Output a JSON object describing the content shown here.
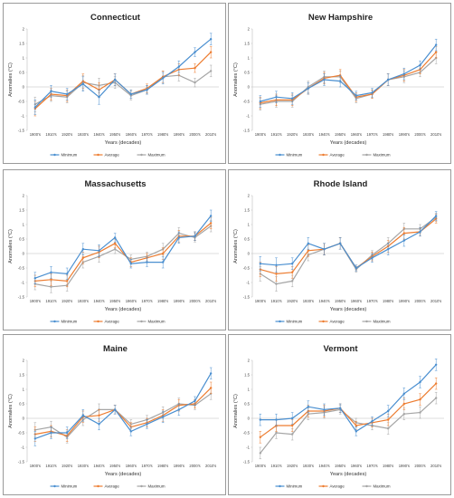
{
  "chart_data": [
    {
      "type": "line",
      "title": "Connecticut",
      "xlabel": "Years (decades)",
      "ylabel": "Anomalies (°C)",
      "ylim": [
        -1.5,
        2
      ],
      "yticks": [
        "-1.5",
        "-1",
        "-0.5",
        "0",
        "0.5",
        "1",
        "1.5",
        "2"
      ],
      "categories": [
        "1900's",
        "1910's",
        "1920's",
        "1930's",
        "1940's",
        "1950's",
        "1960's",
        "1970's",
        "1980's",
        "1990's",
        "2000's",
        "2010's"
      ],
      "legend_position": "bottom",
      "grid": false,
      "series": [
        {
          "name": "Minimum",
          "color": "#4a8fd0",
          "values": [
            -0.7,
            -0.15,
            -0.25,
            0.1,
            -0.35,
            0.25,
            -0.25,
            -0.1,
            0.3,
            0.7,
            1.2,
            1.65
          ],
          "errors": [
            0.25,
            0.2,
            0.2,
            0.25,
            0.25,
            0.2,
            0.15,
            0.15,
            0.2,
            0.2,
            0.15,
            0.2
          ]
        },
        {
          "name": "Average",
          "color": "#ed7d31",
          "values": [
            -0.75,
            -0.25,
            -0.3,
            0.2,
            -0.1,
            0.25,
            -0.25,
            -0.05,
            0.35,
            0.6,
            0.65,
            1.2
          ],
          "errors": [
            0.25,
            0.2,
            0.2,
            0.25,
            0.25,
            0.2,
            0.15,
            0.15,
            0.2,
            0.2,
            0.15,
            0.2
          ]
        },
        {
          "name": "Maximum",
          "color": "#a5a5a5",
          "values": [
            -0.6,
            -0.3,
            -0.35,
            0.15,
            0.05,
            0.15,
            -0.3,
            -0.1,
            0.35,
            0.4,
            0.15,
            0.55
          ],
          "errors": [
            0.25,
            0.2,
            0.2,
            0.25,
            0.25,
            0.2,
            0.15,
            0.15,
            0.2,
            0.2,
            0.15,
            0.2
          ]
        }
      ]
    },
    {
      "type": "line",
      "title": "New Hampshire",
      "xlabel": "Years (decades)",
      "ylabel": "Anomalies (°C)",
      "ylim": [
        -1.5,
        2
      ],
      "yticks": [
        "-1.5",
        "-1",
        "-0.5",
        "0",
        "0.5",
        "1",
        "1.5",
        "2"
      ],
      "categories": [
        "1900's",
        "1910's",
        "1920's",
        "1930's",
        "1940's",
        "1950's",
        "1960's",
        "1970's",
        "1980's",
        "1990's",
        "2000's",
        "2010's"
      ],
      "legend_position": "bottom",
      "grid": false,
      "series": [
        {
          "name": "Minimum",
          "color": "#4a8fd0",
          "values": [
            -0.5,
            -0.35,
            -0.4,
            -0.05,
            0.25,
            0.2,
            -0.3,
            -0.2,
            0.25,
            0.45,
            0.75,
            1.45
          ],
          "errors": [
            0.2,
            0.2,
            0.2,
            0.2,
            0.2,
            0.2,
            0.15,
            0.15,
            0.2,
            0.2,
            0.15,
            0.2
          ]
        },
        {
          "name": "Average",
          "color": "#ed7d31",
          "values": [
            -0.55,
            -0.45,
            -0.45,
            -0.05,
            0.3,
            0.4,
            -0.35,
            -0.25,
            0.25,
            0.4,
            0.6,
            1.2
          ],
          "errors": [
            0.2,
            0.2,
            0.2,
            0.2,
            0.2,
            0.2,
            0.15,
            0.15,
            0.2,
            0.2,
            0.15,
            0.2
          ]
        },
        {
          "name": "Maximum",
          "color": "#a5a5a5",
          "values": [
            -0.6,
            -0.5,
            -0.5,
            0.0,
            0.35,
            0.35,
            -0.4,
            -0.25,
            0.25,
            0.35,
            0.5,
            1.0
          ],
          "errors": [
            0.2,
            0.2,
            0.2,
            0.2,
            0.2,
            0.2,
            0.15,
            0.15,
            0.2,
            0.2,
            0.15,
            0.2
          ]
        }
      ]
    },
    {
      "type": "line",
      "title": "Massachusetts",
      "xlabel": "Years (decades)",
      "ylabel": "Anomalies (°C)",
      "ylim": [
        -1.5,
        2
      ],
      "yticks": [
        "-1.5",
        "-1",
        "-0.5",
        "0",
        "0.5",
        "1",
        "1.5",
        "2"
      ],
      "categories": [
        "1900's",
        "1910's",
        "1920's",
        "1930's",
        "1940's",
        "1950's",
        "1960's",
        "1970's",
        "1980's",
        "1990's",
        "2000's",
        "2010's"
      ],
      "legend_position": "bottom",
      "grid": false,
      "series": [
        {
          "name": "Minimum",
          "color": "#4a8fd0",
          "values": [
            -0.85,
            -0.65,
            -0.7,
            0.15,
            0.1,
            0.55,
            -0.35,
            -0.3,
            -0.3,
            0.55,
            0.6,
            1.3
          ],
          "errors": [
            0.2,
            0.2,
            0.2,
            0.2,
            0.2,
            0.15,
            0.15,
            0.15,
            0.2,
            0.2,
            0.15,
            0.2
          ]
        },
        {
          "name": "Average",
          "color": "#ed7d31",
          "values": [
            -0.95,
            -0.9,
            -0.95,
            -0.15,
            0.05,
            0.35,
            -0.3,
            -0.15,
            0.0,
            0.6,
            0.6,
            1.05
          ],
          "errors": [
            0.2,
            0.2,
            0.2,
            0.2,
            0.2,
            0.15,
            0.15,
            0.15,
            0.2,
            0.2,
            0.15,
            0.2
          ]
        },
        {
          "name": "Maximum",
          "color": "#a5a5a5",
          "values": [
            -1.05,
            -1.15,
            -1.1,
            -0.3,
            -0.1,
            0.15,
            -0.2,
            -0.1,
            0.15,
            0.7,
            0.55,
            0.95
          ],
          "errors": [
            0.2,
            0.2,
            0.2,
            0.2,
            0.2,
            0.15,
            0.15,
            0.15,
            0.2,
            0.2,
            0.15,
            0.2
          ]
        }
      ]
    },
    {
      "type": "line",
      "title": "Rhode Island",
      "xlabel": "Years (decades)",
      "ylabel": "Anomalies (°C)",
      "ylim": [
        -1.5,
        2
      ],
      "yticks": [
        "-1.5",
        "-1",
        "-0.5",
        "0",
        "0.5",
        "1",
        "1.5",
        "2"
      ],
      "categories": [
        "1900's",
        "1910's",
        "1920's",
        "1930's",
        "1940's",
        "1950's",
        "1960's",
        "1970's",
        "1980's",
        "1990's",
        "2000's",
        "2010's"
      ],
      "legend_position": "bottom",
      "grid": false,
      "series": [
        {
          "name": "Minimum",
          "color": "#4a8fd0",
          "values": [
            -0.35,
            -0.4,
            -0.35,
            0.35,
            0.15,
            0.35,
            -0.5,
            -0.15,
            0.15,
            0.45,
            0.75,
            1.3
          ],
          "errors": [
            0.25,
            0.25,
            0.2,
            0.2,
            0.2,
            0.2,
            0.1,
            0.15,
            0.2,
            0.2,
            0.15,
            0.15
          ]
        },
        {
          "name": "Average",
          "color": "#ed7d31",
          "values": [
            -0.55,
            -0.7,
            -0.65,
            0.1,
            0.15,
            0.35,
            -0.5,
            -0.1,
            0.25,
            0.7,
            0.75,
            1.2
          ],
          "errors": [
            0.25,
            0.25,
            0.2,
            0.2,
            0.2,
            0.2,
            0.1,
            0.15,
            0.2,
            0.2,
            0.15,
            0.15
          ]
        },
        {
          "name": "Maximum",
          "color": "#a5a5a5",
          "values": [
            -0.7,
            -1.05,
            -0.95,
            -0.05,
            0.15,
            0.35,
            -0.55,
            -0.05,
            0.35,
            0.85,
            0.85,
            1.25
          ],
          "errors": [
            0.25,
            0.25,
            0.2,
            0.2,
            0.2,
            0.2,
            0.1,
            0.15,
            0.2,
            0.2,
            0.15,
            0.15
          ]
        }
      ]
    },
    {
      "type": "line",
      "title": "Maine",
      "xlabel": "Years (decades)",
      "ylabel": "Anomalies (°C)",
      "ylim": [
        -1.5,
        2
      ],
      "yticks": [
        "-1.5",
        "-1",
        "-0.5",
        "0",
        "0.5",
        "1",
        "1.5",
        "2"
      ],
      "categories": [
        "1900's",
        "1910's",
        "1920's",
        "1930's",
        "1940's",
        "1950's",
        "1960's",
        "1970's",
        "1980's",
        "1990's",
        "2000's",
        "2010's"
      ],
      "legend_position": "bottom",
      "grid": false,
      "series": [
        {
          "name": "Minimum",
          "color": "#4a8fd0",
          "values": [
            -0.7,
            -0.5,
            -0.5,
            0.1,
            -0.2,
            0.3,
            -0.45,
            -0.2,
            0.05,
            0.3,
            0.6,
            1.55
          ],
          "errors": [
            0.25,
            0.2,
            0.2,
            0.2,
            0.2,
            0.15,
            0.15,
            0.15,
            0.2,
            0.2,
            0.15,
            0.2
          ]
        },
        {
          "name": "Average",
          "color": "#ed7d31",
          "values": [
            -0.55,
            -0.45,
            -0.6,
            0.05,
            0.1,
            0.3,
            -0.3,
            -0.15,
            0.1,
            0.45,
            0.5,
            1.05
          ],
          "errors": [
            0.25,
            0.2,
            0.2,
            0.2,
            0.2,
            0.15,
            0.15,
            0.15,
            0.2,
            0.2,
            0.15,
            0.2
          ]
        },
        {
          "name": "Maximum",
          "color": "#a5a5a5",
          "values": [
            -0.4,
            -0.3,
            -0.65,
            -0.05,
            0.3,
            0.3,
            -0.2,
            -0.05,
            0.2,
            0.5,
            0.45,
            0.85
          ],
          "errors": [
            0.25,
            0.2,
            0.2,
            0.2,
            0.2,
            0.15,
            0.15,
            0.15,
            0.2,
            0.2,
            0.15,
            0.2
          ]
        }
      ]
    },
    {
      "type": "line",
      "title": "Vermont",
      "xlabel": "Years (decades)",
      "ylabel": "Anomalies (°C)",
      "ylim": [
        -1.5,
        2
      ],
      "yticks": [
        "-1.5",
        "-1",
        "-0.5",
        "0",
        "0.5",
        "1",
        "1.5",
        "2"
      ],
      "categories": [
        "1900's",
        "1910's",
        "1920's",
        "1930's",
        "1940's",
        "1950's",
        "1960's",
        "1970's",
        "1980's",
        "1990's",
        "2000's",
        "2010's"
      ],
      "legend_position": "bottom",
      "grid": false,
      "series": [
        {
          "name": "Minimum",
          "color": "#4a8fd0",
          "values": [
            -0.05,
            -0.05,
            0.0,
            0.4,
            0.3,
            0.35,
            -0.45,
            -0.1,
            0.25,
            0.85,
            1.25,
            1.85
          ],
          "errors": [
            0.2,
            0.2,
            0.2,
            0.2,
            0.2,
            0.15,
            0.15,
            0.15,
            0.2,
            0.2,
            0.2,
            0.2
          ]
        },
        {
          "name": "Average",
          "color": "#ed7d31",
          "values": [
            -0.65,
            -0.25,
            -0.25,
            0.25,
            0.25,
            0.35,
            -0.25,
            -0.15,
            -0.05,
            0.5,
            0.65,
            1.2
          ],
          "errors": [
            0.2,
            0.2,
            0.2,
            0.2,
            0.2,
            0.15,
            0.15,
            0.15,
            0.2,
            0.2,
            0.2,
            0.2
          ]
        },
        {
          "name": "Maximum",
          "color": "#a5a5a5",
          "values": [
            -1.2,
            -0.5,
            -0.55,
            0.15,
            0.2,
            0.3,
            -0.15,
            -0.25,
            -0.35,
            0.15,
            0.2,
            0.7
          ],
          "errors": [
            0.2,
            0.2,
            0.2,
            0.2,
            0.2,
            0.15,
            0.15,
            0.15,
            0.2,
            0.2,
            0.2,
            0.2
          ]
        }
      ]
    }
  ]
}
